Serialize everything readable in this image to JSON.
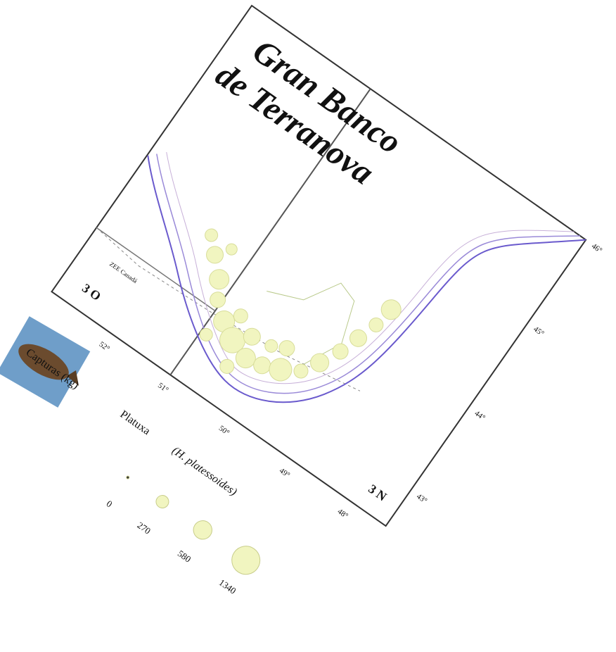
{
  "title": [
    "Gran Banco",
    "de Terranova"
  ],
  "divisions": [
    "3 O",
    "3 N"
  ],
  "eez_label": "ZEE Canadá",
  "longitudes": [
    "52°",
    "51°",
    "50°",
    "49°",
    "48°"
  ],
  "latitudes": [
    "46°",
    "45°",
    "44°",
    "43°"
  ],
  "legend": {
    "title": "Capturas (kg)",
    "species": "Platuxa",
    "scientific_name": "(H. platessoides)",
    "values": [
      0,
      270,
      580,
      1340
    ]
  }
}
